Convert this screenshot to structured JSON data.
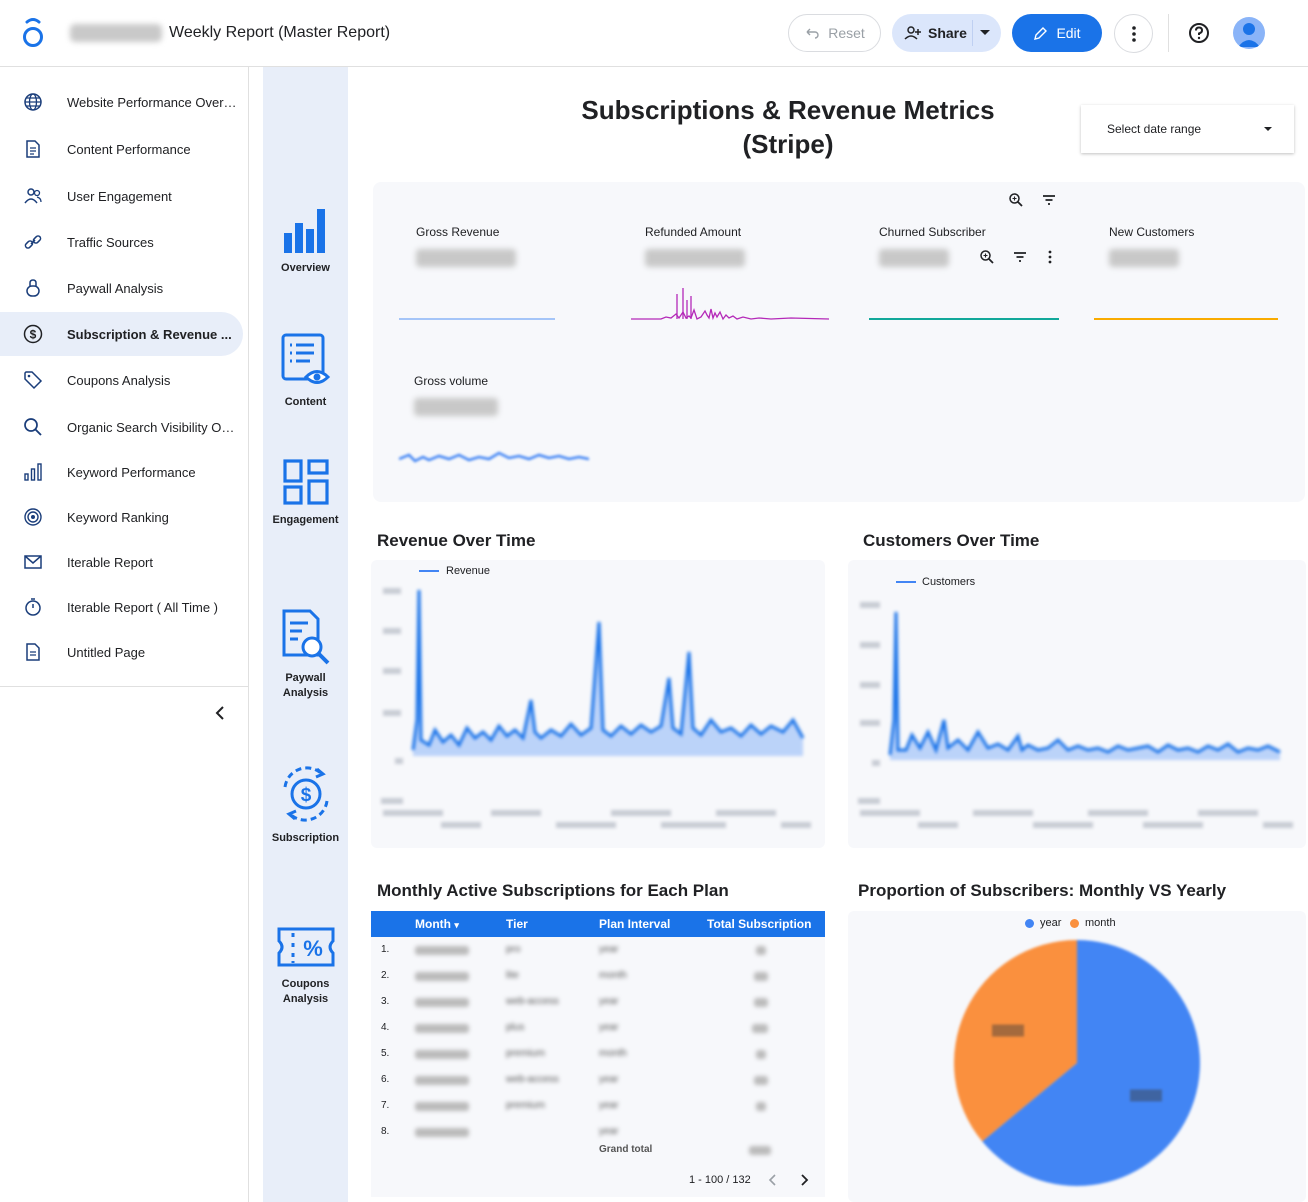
{
  "header": {
    "report_title": "Weekly Report (Master Report)",
    "reset_label": "Reset",
    "share_label": "Share",
    "edit_label": "Edit"
  },
  "sidebar": {
    "items": [
      {
        "label": "Website Performance Over ...",
        "icon": "globe-icon"
      },
      {
        "label": "Content Performance",
        "icon": "document-icon"
      },
      {
        "label": "User Engagement",
        "icon": "users-icon"
      },
      {
        "label": "Traffic Sources",
        "icon": "link-icon"
      },
      {
        "label": "Paywall Analysis",
        "icon": "lock-icon"
      },
      {
        "label": "Subscription & Revenue ...",
        "icon": "dollar-icon"
      },
      {
        "label": "Coupons Analysis",
        "icon": "tag-icon"
      },
      {
        "label": "Organic Search Visibility Ov...",
        "icon": "search-icon"
      },
      {
        "label": "Keyword Performance",
        "icon": "bar-chart-icon"
      },
      {
        "label": "Keyword Ranking",
        "icon": "target-icon"
      },
      {
        "label": "Iterable Report",
        "icon": "mail-icon"
      },
      {
        "label": "Iterable Report ( All Time )",
        "icon": "timer-icon"
      },
      {
        "label": "Untitled Page",
        "icon": "page-icon"
      }
    ],
    "active_index": 5
  },
  "pages": {
    "overview": "Overview",
    "content": "Content",
    "engagement": "Engagement",
    "paywall": "Paywall\nAnalysis",
    "subscription": "Subscription",
    "coupons": "Coupons\nAnalysis"
  },
  "main": {
    "title": "Subscriptions & Revenue Metrics (Stripe)",
    "date_range_label": "Select date range",
    "kpis": {
      "gross_revenue": "Gross Revenue",
      "refunded_amount": "Refunded Amount",
      "churned_subscriber": "Churned Subscriber",
      "new_customers": "New Customers",
      "gross_volume": "Gross volume"
    },
    "revenue_title": "Revenue Over Time",
    "revenue_legend": "Revenue",
    "customers_title": "Customers Over Time",
    "customers_legend": "Customers",
    "table_title": "Monthly Active Subscriptions for Each Plan",
    "pie_title": "Proportion of Subscribers: Monthly VS Yearly"
  },
  "table": {
    "headers": [
      "Month",
      "Tier",
      "Plan Interval",
      "Total Subscription"
    ],
    "rows": [
      {
        "n": "1.",
        "tier": "pro",
        "interval": "year"
      },
      {
        "n": "2.",
        "tier": "lite",
        "interval": "month"
      },
      {
        "n": "3.",
        "tier": "web-access",
        "interval": "year"
      },
      {
        "n": "4.",
        "tier": "plus",
        "interval": "year"
      },
      {
        "n": "5.",
        "tier": "premium",
        "interval": "month"
      },
      {
        "n": "6.",
        "tier": "web-access",
        "interval": "year"
      },
      {
        "n": "7.",
        "tier": "premium",
        "interval": "year"
      },
      {
        "n": "8.",
        "tier": "",
        "interval": "year"
      }
    ],
    "grand_total_label": "Grand total",
    "pagination": "1 - 100 / 132"
  },
  "chart_data": [
    {
      "type": "pie",
      "title": "Proportion of Subscribers: Monthly VS Yearly",
      "categories": [
        "year",
        "month"
      ],
      "values": [
        64,
        36
      ],
      "colors": [
        "#4285f4",
        "#fa903e"
      ],
      "legend": "top"
    }
  ],
  "colors": {
    "accent": "#1a73e8",
    "revenue_line": "#4285f4",
    "refund_line": "#b429b8",
    "churn_line": "#12a89a",
    "new_cust_line": "#f9ab00"
  }
}
